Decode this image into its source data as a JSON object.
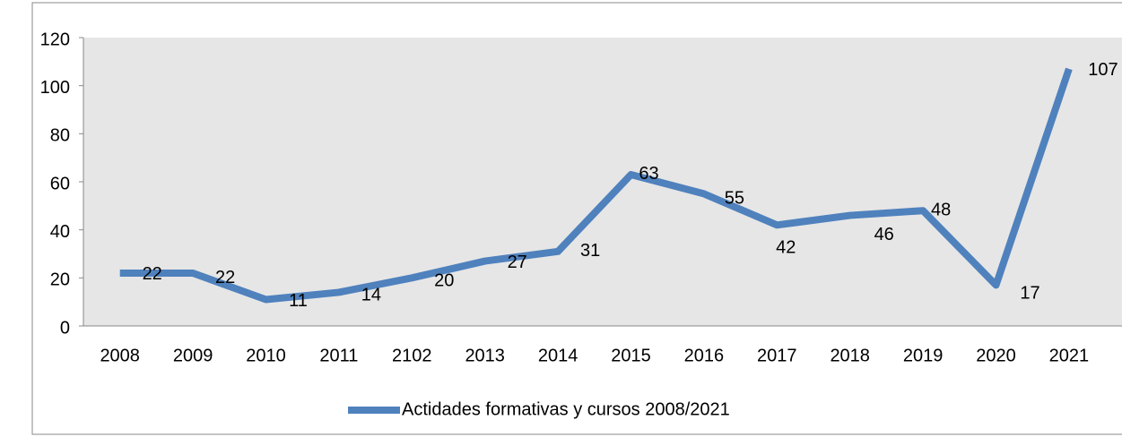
{
  "chart_data": {
    "type": "line",
    "categories": [
      "2008",
      "2009",
      "2010",
      "2011",
      "2102",
      "2013",
      "2014",
      "2015",
      "2016",
      "2017",
      "2018",
      "2019",
      "2020",
      "2021"
    ],
    "series": [
      {
        "name": "Actidades formativas y cursos 2008/2021",
        "color": "#4f81bd",
        "values": [
          22,
          22,
          11,
          14,
          20,
          27,
          31,
          63,
          55,
          42,
          46,
          48,
          17,
          107
        ]
      }
    ],
    "ylim": [
      0,
      120
    ],
    "yticks": [
      0,
      20,
      40,
      60,
      80,
      100,
      120
    ],
    "grid": false,
    "legend": "bottom"
  }
}
